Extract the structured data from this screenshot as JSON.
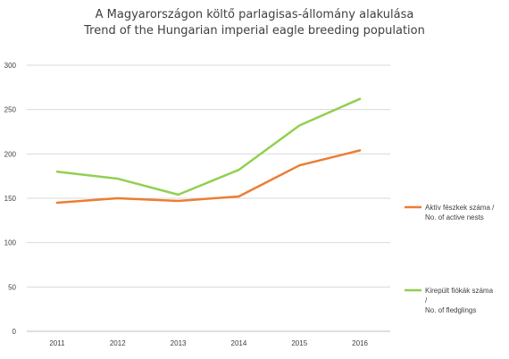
{
  "chart_data": {
    "type": "line",
    "title": "A Magyarországon költő parlagisas-állomány alakulása",
    "subtitle": "Trend of the Hungarian imperial eagle breeding population",
    "xlabel": "",
    "ylabel": "",
    "categories": [
      "2011",
      "2012",
      "2013",
      "2014",
      "2015",
      "2016"
    ],
    "ylim": [
      0,
      300
    ],
    "yticks": [
      "0",
      "50",
      "100",
      "150",
      "200",
      "250",
      "300"
    ],
    "grid": true,
    "legend_position": "right",
    "series": [
      {
        "name_lines": [
          "Aktív fészkek száma /",
          "No. of active nests"
        ],
        "color": "#ED7D31",
        "values": [
          145,
          150,
          147,
          152,
          187,
          204
        ]
      },
      {
        "name_lines": [
          "Kirepült fiókák száma",
          "/",
          "No. of fledglings"
        ],
        "color": "#92D050",
        "values": [
          180,
          172,
          154,
          182,
          232,
          262
        ]
      }
    ]
  }
}
